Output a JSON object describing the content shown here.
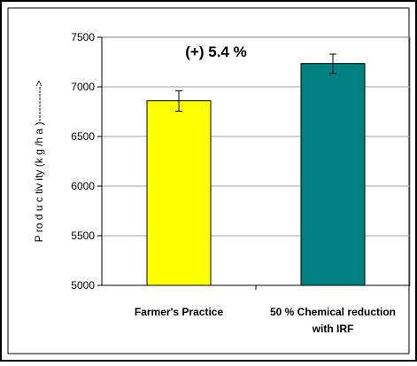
{
  "chart_data": {
    "type": "bar",
    "categories": [
      "Farmer's Practice",
      "50 % Chemical reduction with IRF"
    ],
    "category_lines": [
      [
        "Farmer's Practice"
      ],
      [
        "50 % Chemical reduction",
        "with IRF"
      ]
    ],
    "values": [
      6860,
      7235
    ],
    "error_low": [
      6755,
      7135
    ],
    "error_high": [
      6960,
      7330
    ],
    "bar_colors": [
      "#ffff00",
      "#008080"
    ],
    "ylabel": "P ro d u c tiv ity  (k g /h a )---------->",
    "ylim": [
      5000,
      7500
    ],
    "yticks": [
      5000,
      5500,
      6000,
      6500,
      7000,
      7500
    ],
    "ytick_labels": [
      "5000",
      "5500",
      "6000",
      "6500",
      "7000",
      "7500"
    ],
    "grid": true,
    "annotation": "(+) 5.4 %"
  }
}
